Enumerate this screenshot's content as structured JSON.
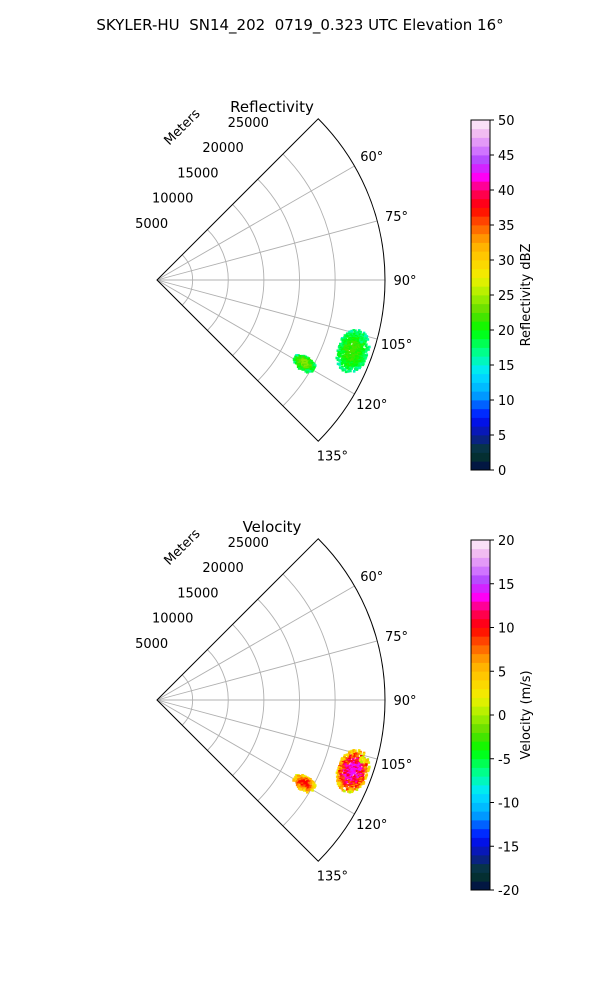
{
  "title": "SKYLER-HU  SN14_202  0719_0.323 UTC Elevation 16°",
  "chart_data": [
    {
      "type": "polar-sector",
      "title": "Reflectivity",
      "radial_axis_label": "Meters",
      "radial_tick_labels": [
        "5000",
        "10000",
        "15000",
        "20000",
        "25000"
      ],
      "radial_ticks": [
        5000,
        10000,
        15000,
        20000,
        25000
      ],
      "rmax": 32000,
      "theta_range_deg": [
        45,
        135
      ],
      "theta_tick_labels": [
        "60°",
        "75°",
        "90°",
        "105°",
        "120°",
        "135°"
      ],
      "theta_ticks": [
        60,
        75,
        90,
        105,
        120,
        135
      ],
      "colorbar": {
        "label": "Reflectivity dBZ",
        "ticks": [
          0,
          5,
          10,
          15,
          20,
          25,
          30,
          35,
          40,
          45,
          50
        ],
        "range": [
          0,
          50
        ]
      },
      "echoes": [
        {
          "az_range": [
            104,
            116
          ],
          "range_m": [
            27000,
            31500
          ],
          "value_range": [
            15,
            22
          ]
        },
        {
          "az_range": [
            117,
            122
          ],
          "range_m": [
            22000,
            25500
          ],
          "value_range": [
            15,
            24
          ]
        },
        {
          "az_range": [
            105.5,
            107
          ],
          "range_m": [
            29500,
            30500
          ],
          "value_range": [
            16,
            19
          ]
        }
      ]
    },
    {
      "type": "polar-sector",
      "title": "Velocity",
      "radial_axis_label": "Meters",
      "radial_tick_labels": [
        "5000",
        "10000",
        "15000",
        "20000",
        "25000"
      ],
      "radial_ticks": [
        5000,
        10000,
        15000,
        20000,
        25000
      ],
      "rmax": 32000,
      "theta_range_deg": [
        45,
        135
      ],
      "theta_tick_labels": [
        "60°",
        "75°",
        "90°",
        "105°",
        "120°",
        "135°"
      ],
      "theta_ticks": [
        60,
        75,
        90,
        105,
        120,
        135
      ],
      "colorbar": {
        "label": "Velocity (m/s)",
        "ticks": [
          -20,
          -15,
          -10,
          -5,
          0,
          5,
          10,
          15,
          20
        ],
        "range": [
          -20,
          20
        ]
      },
      "echoes": [
        {
          "az_range": [
            104,
            116
          ],
          "range_m": [
            27000,
            31500
          ],
          "value_range": [
            0,
            14
          ]
        },
        {
          "az_range": [
            117,
            122
          ],
          "range_m": [
            22000,
            25500
          ],
          "value_range": [
            0,
            10
          ]
        },
        {
          "az_range": [
            105.5,
            107
          ],
          "range_m": [
            29500,
            30500
          ],
          "value_range": [
            0,
            3
          ]
        }
      ]
    }
  ]
}
